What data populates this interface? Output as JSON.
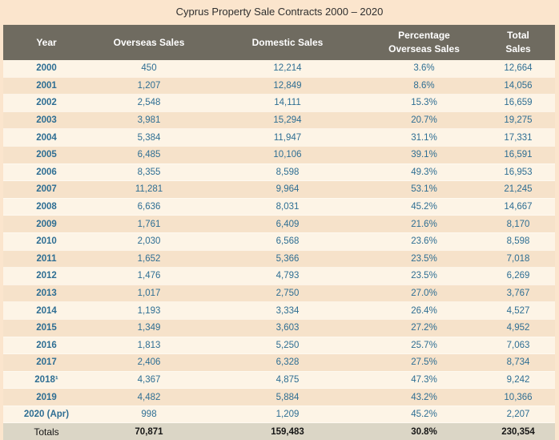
{
  "title": "Cyprus Property Sale Contracts 2000 – 2020",
  "table": {
    "headers": {
      "year": "Year",
      "overseas": "Overseas Sales",
      "domestic": "Domestic Sales",
      "percentage_line1": "Percentage",
      "percentage_line2": "Overseas Sales",
      "total_line1": "Total",
      "total_line2": "Sales"
    },
    "rows": [
      {
        "year": "2000",
        "overseas": "450",
        "domestic": "12,214",
        "percentage": "3.6%",
        "total": "12,664"
      },
      {
        "year": "2001",
        "overseas": "1,207",
        "domestic": "12,849",
        "percentage": "8.6%",
        "total": "14,056"
      },
      {
        "year": "2002",
        "overseas": "2,548",
        "domestic": "14,111",
        "percentage": "15.3%",
        "total": "16,659"
      },
      {
        "year": "2003",
        "overseas": "3,981",
        "domestic": "15,294",
        "percentage": "20.7%",
        "total": "19,275"
      },
      {
        "year": "2004",
        "overseas": "5,384",
        "domestic": "11,947",
        "percentage": "31.1%",
        "total": "17,331"
      },
      {
        "year": "2005",
        "overseas": "6,485",
        "domestic": "10,106",
        "percentage": "39.1%",
        "total": "16,591"
      },
      {
        "year": "2006",
        "overseas": "8,355",
        "domestic": "8,598",
        "percentage": "49.3%",
        "total": "16,953"
      },
      {
        "year": "2007",
        "overseas": "11,281",
        "domestic": "9,964",
        "percentage": "53.1%",
        "total": "21,245"
      },
      {
        "year": "2008",
        "overseas": "6,636",
        "domestic": "8,031",
        "percentage": "45.2%",
        "total": "14,667"
      },
      {
        "year": "2009",
        "overseas": "1,761",
        "domestic": "6,409",
        "percentage": "21.6%",
        "total": "8,170"
      },
      {
        "year": "2010",
        "overseas": "2,030",
        "domestic": "6,568",
        "percentage": "23.6%",
        "total": "8,598"
      },
      {
        "year": "2011",
        "overseas": "1,652",
        "domestic": "5,366",
        "percentage": "23.5%",
        "total": "7,018"
      },
      {
        "year": "2012",
        "overseas": "1,476",
        "domestic": "4,793",
        "percentage": "23.5%",
        "total": "6,269"
      },
      {
        "year": "2013",
        "overseas": "1,017",
        "domestic": "2,750",
        "percentage": "27.0%",
        "total": "3,767"
      },
      {
        "year": "2014",
        "overseas": "1,193",
        "domestic": "3,334",
        "percentage": "26.4%",
        "total": "4,527"
      },
      {
        "year": "2015",
        "overseas": "1,349",
        "domestic": "3,603",
        "percentage": "27.2%",
        "total": "4,952"
      },
      {
        "year": "2016",
        "overseas": "1,813",
        "domestic": "5,250",
        "percentage": "25.7%",
        "total": "7,063"
      },
      {
        "year": "2017",
        "overseas": "2,406",
        "domestic": "6,328",
        "percentage": "27.5%",
        "total": "8,734"
      },
      {
        "year": "2018¹",
        "overseas": "4,367",
        "domestic": "4,875",
        "percentage": "47.3%",
        "total": "9,242"
      },
      {
        "year": "2019",
        "overseas": "4,482",
        "domestic": "5,884",
        "percentage": "43.2%",
        "total": "10,366"
      },
      {
        "year": "2020 (Apr)",
        "overseas": "998",
        "domestic": "1,209",
        "percentage": "45.2%",
        "total": "2,207"
      }
    ],
    "totals": {
      "label": "Totals",
      "overseas": "70,871",
      "domestic": "159,483",
      "percentage": "30.8%",
      "total": "230,354"
    }
  },
  "colors": {
    "page_background": "#fbe5cd",
    "header_background": "#6f6b60",
    "header_text": "#ffffff",
    "row_light": "#fdf4e6",
    "row_dark": "#f6e2ca",
    "value_text": "#2e6e93",
    "totals_background": "#dbd6c6",
    "totals_text": "#161616",
    "totals_border": "#514e46",
    "title_text": "#2f2f2f"
  }
}
